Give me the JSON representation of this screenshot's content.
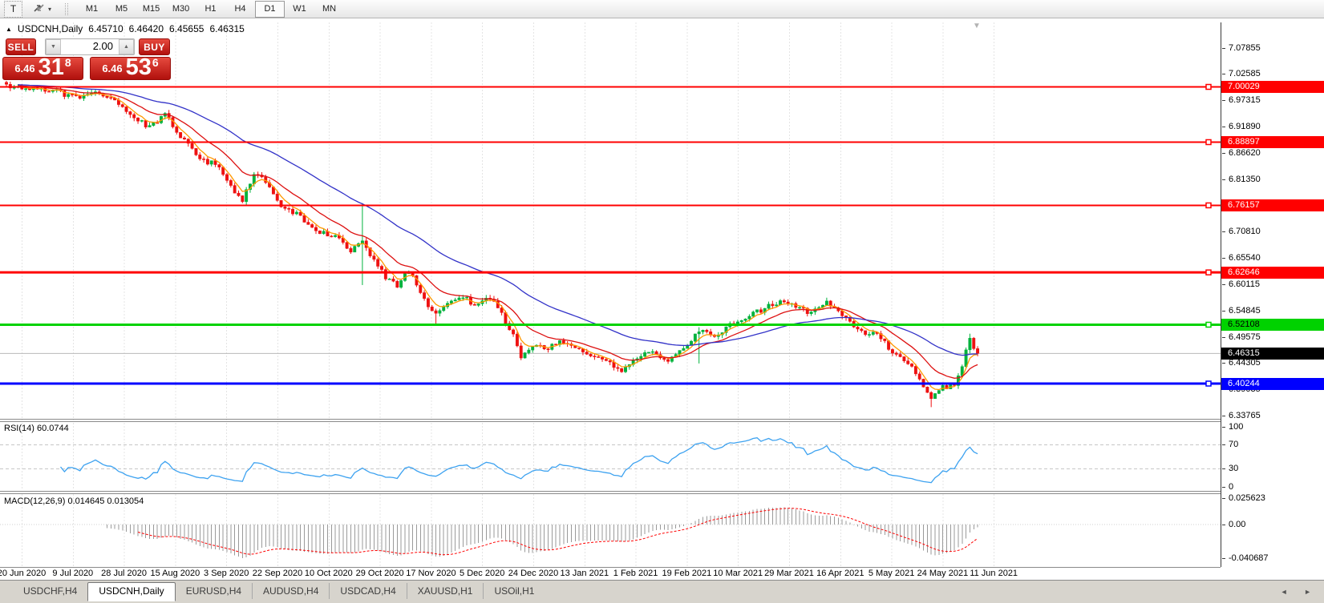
{
  "toolbar": {
    "text_tool_label": "T",
    "dropdown_caret": "▾",
    "timeframes": [
      {
        "label": "M1",
        "active": false
      },
      {
        "label": "M5",
        "active": false
      },
      {
        "label": "M15",
        "active": false
      },
      {
        "label": "M30",
        "active": false
      },
      {
        "label": "H1",
        "active": false
      },
      {
        "label": "H4",
        "active": false
      },
      {
        "label": "D1",
        "active": true
      },
      {
        "label": "W1",
        "active": false
      },
      {
        "label": "MN",
        "active": false
      }
    ]
  },
  "chart_header": {
    "collapse_icon": "▲",
    "symbol_period": "USDCNH,Daily",
    "open": "6.45710",
    "high": "6.46420",
    "low": "6.45655",
    "close": "6.46315"
  },
  "trade_panel": {
    "sell_label": "SELL",
    "buy_label": "BUY",
    "volume_value": "2.00",
    "spin_down_icon": "▼",
    "spin_up_icon": "▲",
    "sell_price": {
      "prefix": "6.46",
      "big": "31",
      "sup": "8"
    },
    "buy_price": {
      "prefix": "6.46",
      "big": "53",
      "sup": "6"
    }
  },
  "price_pane": {
    "shift_marker_icon": "▼",
    "axis_labels": [
      "7.07855",
      "7.02585",
      "6.97315",
      "6.91890",
      "6.86620",
      "6.81350",
      "6.70810",
      "6.65540",
      "6.60115",
      "6.54845",
      "6.49575",
      "6.44305",
      "6.39035",
      "6.33765"
    ],
    "current_price": {
      "price": 6.46315,
      "label": "6.46315",
      "line_color": "#b9b9b9",
      "label_bg": "#000000",
      "label_color": "#ffffff"
    }
  },
  "rsi_panel": {
    "label": "RSI(14) 60.0744",
    "axis_labels": [
      "100",
      "70",
      "30",
      "0"
    ],
    "levels": [
      70,
      30
    ]
  },
  "macd_panel": {
    "label": "MACD(12,26,9) 0.014645 0.013054",
    "axis_labels": [
      "0.025623",
      "0.00",
      "-0.040687"
    ]
  },
  "tab_bar": {
    "tabs": [
      {
        "label": "USDCHF,H4",
        "active": false
      },
      {
        "label": "USDCNH,Daily",
        "active": true
      },
      {
        "label": "EURUSD,H4",
        "active": false
      },
      {
        "label": "AUDUSD,H4",
        "active": false
      },
      {
        "label": "USDCAD,H4",
        "active": false
      },
      {
        "label": "XAUUSD,H1",
        "active": false
      },
      {
        "label": "USOil,H1",
        "active": false
      }
    ],
    "scroll_left_icon": "◄",
    "scroll_right_icon": "►"
  },
  "chart_data": {
    "type": "candlestick",
    "symbol": "USDCNH",
    "timeframe": "Daily",
    "ohlc_current": {
      "open": 6.4571,
      "high": 6.4642,
      "low": 6.45655,
      "close": 6.46315
    },
    "dates": [
      "20 Jun 2020",
      "9 Jul 2020",
      "28 Jul 2020",
      "15 Aug 2020",
      "3 Sep 2020",
      "22 Sep 2020",
      "10 Oct 2020",
      "29 Oct 2020",
      "17 Nov 2020",
      "5 Dec 2020",
      "24 Dec 2020",
      "13 Jan 2021",
      "1 Feb 2021",
      "19 Feb 2021",
      "10 Mar 2021",
      "29 Mar 2021",
      "16 Apr 2021",
      "5 May 2021",
      "24 May 2021",
      "11 Jun 2021"
    ],
    "y_visible_range": [
      6.33765,
      7.07855
    ],
    "num_candles": 252,
    "noise": 0.01,
    "waypoints": [
      [
        0,
        7.002
      ],
      [
        11,
        6.995
      ],
      [
        19,
        6.976
      ],
      [
        23,
        6.992
      ],
      [
        29,
        6.965
      ],
      [
        37,
        6.918
      ],
      [
        41,
        6.944
      ],
      [
        46,
        6.892
      ],
      [
        51,
        6.852
      ],
      [
        55,
        6.842
      ],
      [
        58,
        6.798
      ],
      [
        61,
        6.773
      ],
      [
        64,
        6.826
      ],
      [
        67,
        6.808
      ],
      [
        70,
        6.768
      ],
      [
        75,
        6.744
      ],
      [
        81,
        6.708
      ],
      [
        85,
        6.7
      ],
      [
        89,
        6.672
      ],
      [
        92,
        6.69
      ],
      [
        95,
        6.648
      ],
      [
        98,
        6.618
      ],
      [
        101,
        6.6
      ],
      [
        104,
        6.629
      ],
      [
        107,
        6.588
      ],
      [
        110,
        6.545
      ],
      [
        114,
        6.56
      ],
      [
        118,
        6.579
      ],
      [
        121,
        6.559
      ],
      [
        125,
        6.574
      ],
      [
        128,
        6.544
      ],
      [
        131,
        6.498
      ],
      [
        133,
        6.455
      ],
      [
        136,
        6.479
      ],
      [
        140,
        6.474
      ],
      [
        143,
        6.489
      ],
      [
        148,
        6.474
      ],
      [
        152,
        6.454
      ],
      [
        156,
        6.444
      ],
      [
        159,
        6.424
      ],
      [
        162,
        6.454
      ],
      [
        167,
        6.469
      ],
      [
        171,
        6.449
      ],
      [
        175,
        6.474
      ],
      [
        179,
        6.508
      ],
      [
        183,
        6.499
      ],
      [
        187,
        6.519
      ],
      [
        192,
        6.539
      ],
      [
        196,
        6.554
      ],
      [
        200,
        6.569
      ],
      [
        204,
        6.559
      ],
      [
        208,
        6.544
      ],
      [
        212,
        6.564
      ],
      [
        215,
        6.549
      ],
      [
        218,
        6.524
      ],
      [
        222,
        6.499
      ],
      [
        225,
        6.504
      ],
      [
        228,
        6.474
      ],
      [
        231,
        6.454
      ],
      [
        234,
        6.439
      ],
      [
        237,
        6.399
      ],
      [
        239,
        6.373
      ],
      [
        242,
        6.394
      ],
      [
        245,
        6.399
      ],
      [
        247,
        6.439
      ],
      [
        249,
        6.492
      ],
      [
        251,
        6.46315
      ]
    ],
    "spikes": [
      {
        "i": 92,
        "high": 6.766,
        "low": 6.601
      },
      {
        "i": 111,
        "low": 6.522
      },
      {
        "i": 179,
        "low": 6.443,
        "high": 6.516
      },
      {
        "i": 239,
        "low": 6.355
      },
      {
        "i": 249,
        "high": 6.503
      }
    ],
    "horizontal_lines": [
      {
        "price": 7.00029,
        "label": "7.00029",
        "color": "#ff0000",
        "width": 2,
        "label_color": "#ffffff"
      },
      {
        "price": 6.88897,
        "label": "6.88897",
        "color": "#ff0000",
        "width": 2,
        "label_color": "#ffffff"
      },
      {
        "price": 6.76157,
        "label": "6.76157",
        "color": "#ff0000",
        "width": 2,
        "label_color": "#ffffff"
      },
      {
        "price": 6.62646,
        "label": "6.62646",
        "color": "#ff0000",
        "width": 3,
        "label_color": "#ffffff"
      },
      {
        "price": 6.52108,
        "label": "6.52108",
        "color": "#00d200",
        "width": 3,
        "label_color": "#000000"
      },
      {
        "price": 6.40244,
        "label": "6.40244",
        "color": "#0000ff",
        "width": 3,
        "label_color": "#ffffff"
      }
    ],
    "moving_averages": [
      {
        "name": "fast",
        "period": 5,
        "color": "#ff9900"
      },
      {
        "name": "medium",
        "period": 15,
        "color": "#dd1111"
      },
      {
        "name": "slow",
        "period": 45,
        "color": "#3232c8"
      }
    ],
    "indicators": [
      {
        "name": "RSI",
        "period": 14,
        "current": 60.0744,
        "levels": [
          70,
          30
        ],
        "color": "#3da2f0"
      },
      {
        "name": "MACD",
        "fast": 12,
        "slow": 26,
        "signal": 9,
        "main_current": 0.014645,
        "signal_current": 0.013054,
        "axis_max": 0.025623,
        "axis_min": -0.040687,
        "hist_color": "#9a9a9a",
        "signal_color": "#ff0000"
      }
    ],
    "colors": {
      "up": "#00b23c",
      "down": "#ee1111",
      "grid": "#e4e4e4",
      "background": "#ffffff"
    }
  }
}
